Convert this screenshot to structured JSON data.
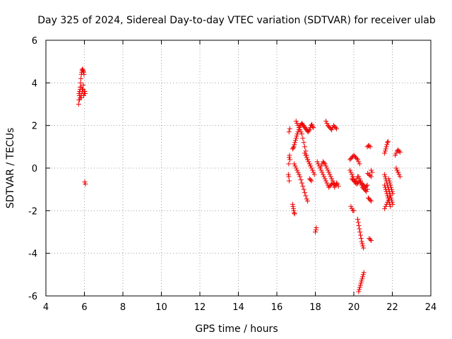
{
  "chart_data": {
    "type": "scatter",
    "title": "Day 325 of 2024, Sidereal Day-to-day VTEC variation (SDTVAR) for receiver ulab",
    "xlabel": "GPS time / hours",
    "ylabel": "SDTVAR / TECUs",
    "xlim": [
      4,
      24
    ],
    "ylim": [
      -6,
      6
    ],
    "xticks": [
      "4",
      "6",
      "8",
      "10",
      "12",
      "14",
      "16",
      "18",
      "20",
      "22",
      "24"
    ],
    "yticks": [
      "-6",
      "-4",
      "-2",
      "0",
      "2",
      "4",
      "6"
    ],
    "grid": true,
    "marker": "+",
    "color": "#ee0000",
    "series": [
      {
        "name": "SDTVAR",
        "x": [
          5.7,
          5.72,
          5.74,
          5.76,
          5.78,
          5.8,
          5.82,
          5.84,
          5.86,
          5.88,
          5.9,
          5.92,
          5.94,
          5.96,
          5.98,
          5.72,
          5.75,
          5.78,
          5.81,
          5.84,
          5.87,
          5.9,
          5.93,
          5.96,
          5.99,
          6.02,
          5.74,
          5.79,
          5.84,
          5.89,
          5.94,
          5.99,
          6.04,
          6.02,
          6.05,
          16.62,
          16.64,
          16.66,
          16.68,
          16.63,
          16.67,
          16.6,
          16.62,
          16.64,
          16.82,
          16.84,
          16.86,
          16.88,
          16.9,
          16.92,
          16.82,
          16.85,
          16.88,
          16.91,
          16.94,
          16.97,
          17.0,
          17.03,
          17.06,
          17.1,
          17.14,
          17.18,
          17.22,
          17.26,
          17.3,
          17.34,
          17.38,
          17.42,
          17.46,
          17.5,
          17.54,
          17.58,
          17.62,
          17.66,
          17.7,
          17.74,
          17.78,
          17.82,
          17.86,
          17.9,
          17.0,
          17.05,
          17.1,
          17.15,
          17.2,
          17.25,
          17.3,
          17.35,
          17.4,
          17.45,
          17.5,
          17.55,
          17.6,
          17.65,
          17.7,
          17.75,
          16.9,
          16.95,
          17.0,
          17.05,
          17.1,
          17.15,
          17.2,
          17.25,
          17.3,
          17.35,
          17.4,
          17.45,
          17.5,
          17.55,
          17.6,
          17.45,
          17.5,
          17.55,
          17.6,
          17.65,
          17.7,
          17.75,
          17.8,
          17.85,
          17.9,
          17.95,
          17.7,
          17.75,
          17.8,
          18.05,
          18.0,
          18.03,
          18.1,
          18.15,
          18.2,
          18.25,
          18.3,
          18.35,
          18.4,
          18.45,
          18.5,
          18.55,
          18.6,
          18.65,
          18.7,
          18.75,
          18.8,
          18.85,
          18.9,
          18.95,
          19.0,
          19.05,
          19.1,
          19.15,
          19.2,
          18.3,
          18.35,
          18.4,
          18.45,
          18.5,
          18.55,
          18.6,
          18.65,
          18.7,
          18.75,
          18.8,
          18.85,
          18.9,
          18.95,
          19.0,
          19.05,
          18.55,
          18.6,
          18.65,
          18.7,
          18.75,
          18.8,
          18.85,
          18.9,
          18.95,
          19.0,
          19.05,
          19.1,
          19.8,
          19.85,
          19.9,
          19.95,
          20.0,
          20.05,
          20.1,
          20.15,
          20.2,
          20.25,
          20.3,
          19.8,
          19.85,
          19.9,
          19.95,
          20.0,
          20.05,
          20.1,
          20.15,
          20.2,
          20.25,
          20.3,
          20.35,
          20.4,
          20.45,
          20.5,
          20.55,
          20.6,
          20.65,
          20.7,
          19.9,
          19.95,
          20.0,
          20.05,
          20.1,
          20.15,
          20.2,
          20.25,
          20.3,
          20.35,
          20.4,
          20.45,
          20.5,
          20.55,
          20.6,
          20.65,
          20.7,
          19.85,
          19.9,
          19.95,
          20.0,
          20.2,
          20.23,
          20.26,
          20.29,
          20.32,
          20.35,
          20.38,
          20.41,
          20.44,
          20.47,
          20.5,
          20.25,
          20.28,
          20.31,
          20.34,
          20.37,
          20.4,
          20.43,
          20.46,
          20.49,
          20.52,
          20.7,
          20.75,
          20.8,
          20.85,
          20.9,
          20.95,
          20.72,
          20.78,
          20.84,
          20.9,
          20.75,
          20.8,
          20.85,
          20.9,
          20.8,
          20.85,
          20.9,
          21.6,
          21.63,
          21.66,
          21.69,
          21.72,
          21.75,
          21.78,
          21.81,
          21.84,
          21.87,
          21.9,
          21.93,
          21.96,
          21.99,
          22.02,
          21.6,
          21.63,
          21.66,
          21.69,
          21.72,
          21.75,
          21.78,
          21.81,
          21.84,
          21.87,
          21.9,
          21.93,
          21.96,
          21.99,
          22.02,
          21.6,
          21.63,
          21.66,
          21.69,
          21.72,
          21.75,
          21.78,
          21.81,
          21.84,
          21.87,
          21.9,
          21.6,
          21.65,
          21.7,
          21.75,
          21.8,
          21.85,
          21.9,
          22.15,
          22.2,
          22.25,
          22.3,
          22.35,
          22.4,
          22.25,
          22.3,
          22.35,
          22.4,
          22.2,
          22.25,
          22.3
        ],
        "y": [
          3.0,
          3.2,
          3.4,
          3.6,
          3.8,
          4.0,
          4.2,
          4.4,
          4.5,
          4.6,
          4.65,
          4.6,
          4.55,
          4.5,
          4.4,
          3.5,
          3.6,
          3.7,
          3.4,
          3.3,
          3.5,
          3.6,
          3.7,
          3.4,
          3.5,
          3.6,
          3.2,
          3.3,
          3.8,
          3.7,
          3.9,
          3.6,
          3.5,
          -0.65,
          -0.75,
          -0.4,
          -0.6,
          0.6,
          0.4,
          1.7,
          1.85,
          -0.3,
          0.2,
          0.5,
          -1.7,
          -1.8,
          -1.9,
          -2.0,
          -2.1,
          -2.15,
          0.9,
          0.95,
          1.0,
          1.1,
          1.2,
          1.3,
          1.4,
          1.5,
          1.6,
          1.7,
          1.8,
          1.9,
          2.0,
          2.05,
          2.1,
          2.05,
          2.0,
          1.95,
          1.9,
          1.85,
          1.8,
          1.75,
          1.7,
          1.75,
          1.8,
          1.9,
          2.0,
          2.05,
          1.95,
          1.9,
          2.2,
          2.1,
          2.0,
          1.9,
          1.8,
          1.7,
          1.6,
          1.4,
          1.2,
          1.0,
          0.8,
          0.6,
          0.4,
          0.3,
          0.2,
          0.1,
          0.2,
          0.1,
          0.0,
          -0.1,
          -0.2,
          -0.3,
          -0.4,
          -0.55,
          -0.7,
          -0.85,
          -1.0,
          -1.15,
          -1.3,
          -1.45,
          -1.55,
          0.7,
          0.6,
          0.5,
          0.4,
          0.3,
          0.2,
          0.1,
          0.0,
          -0.1,
          -0.2,
          -0.3,
          -0.5,
          -0.55,
          -0.6,
          -2.8,
          -3.0,
          -2.9,
          0.3,
          0.2,
          0.1,
          0.0,
          -0.1,
          -0.2,
          -0.3,
          -0.4,
          -0.5,
          -0.6,
          -0.7,
          -0.8,
          -0.9,
          -0.85,
          -0.8,
          -0.75,
          -0.7,
          -0.8,
          -0.9,
          -0.8,
          -0.7,
          -0.75,
          -0.85,
          0.1,
          0.2,
          0.3,
          0.25,
          0.2,
          0.1,
          0.0,
          -0.1,
          -0.2,
          -0.3,
          -0.4,
          -0.5,
          -0.6,
          -0.7,
          -0.75,
          -0.8,
          2.2,
          2.1,
          2.0,
          1.95,
          1.9,
          1.85,
          1.8,
          1.9,
          2.0,
          1.95,
          1.9,
          1.85,
          0.4,
          0.45,
          0.5,
          0.55,
          0.6,
          0.55,
          0.5,
          0.45,
          0.4,
          0.3,
          0.2,
          -0.1,
          -0.2,
          -0.3,
          -0.4,
          -0.5,
          -0.6,
          -0.6,
          -0.5,
          -0.4,
          -0.4,
          -0.5,
          -0.6,
          -0.7,
          -0.75,
          -0.8,
          -0.85,
          -0.9,
          -0.85,
          -0.8,
          -0.5,
          -0.55,
          -0.6,
          -0.65,
          -0.7,
          -0.75,
          -0.7,
          -0.65,
          -0.6,
          -0.7,
          -0.8,
          -0.9,
          -0.95,
          -1.0,
          -1.05,
          -1.1,
          -1.0,
          -1.8,
          -1.9,
          -2.0,
          -2.0,
          -2.4,
          -2.55,
          -2.7,
          -2.85,
          -3.0,
          -3.15,
          -3.3,
          -3.45,
          -3.55,
          -3.65,
          -3.75,
          -5.8,
          -5.7,
          -5.6,
          -5.5,
          -5.4,
          -5.3,
          -5.2,
          -5.1,
          -5.0,
          -4.9,
          1.0,
          1.05,
          1.05,
          1.0,
          -0.1,
          -0.2,
          -0.25,
          -0.3,
          -0.35,
          -0.4,
          -1.4,
          -1.45,
          -1.5,
          -1.55,
          -3.3,
          -3.35,
          -3.4,
          0.7,
          0.8,
          0.9,
          1.0,
          1.1,
          1.2,
          1.25,
          -0.5,
          -0.6,
          -0.7,
          -0.8,
          -0.9,
          -1.0,
          -1.1,
          -1.2,
          -0.3,
          -0.4,
          -0.5,
          -0.6,
          -0.7,
          -0.8,
          -0.9,
          -1.0,
          -1.1,
          -1.2,
          -1.3,
          -1.4,
          -1.5,
          -1.6,
          -1.7,
          -0.8,
          -0.9,
          -1.0,
          -1.1,
          -1.2,
          -1.3,
          -1.4,
          -1.5,
          -1.6,
          -1.7,
          -1.8,
          -1.9,
          -1.8,
          -1.7,
          -1.6,
          -1.5,
          -1.4,
          -1.3,
          0.6,
          0.7,
          0.8,
          0.85,
          0.8,
          0.75,
          -0.1,
          -0.2,
          -0.3,
          -0.4,
          0.0,
          -0.1,
          -0.2
        ]
      }
    ]
  }
}
